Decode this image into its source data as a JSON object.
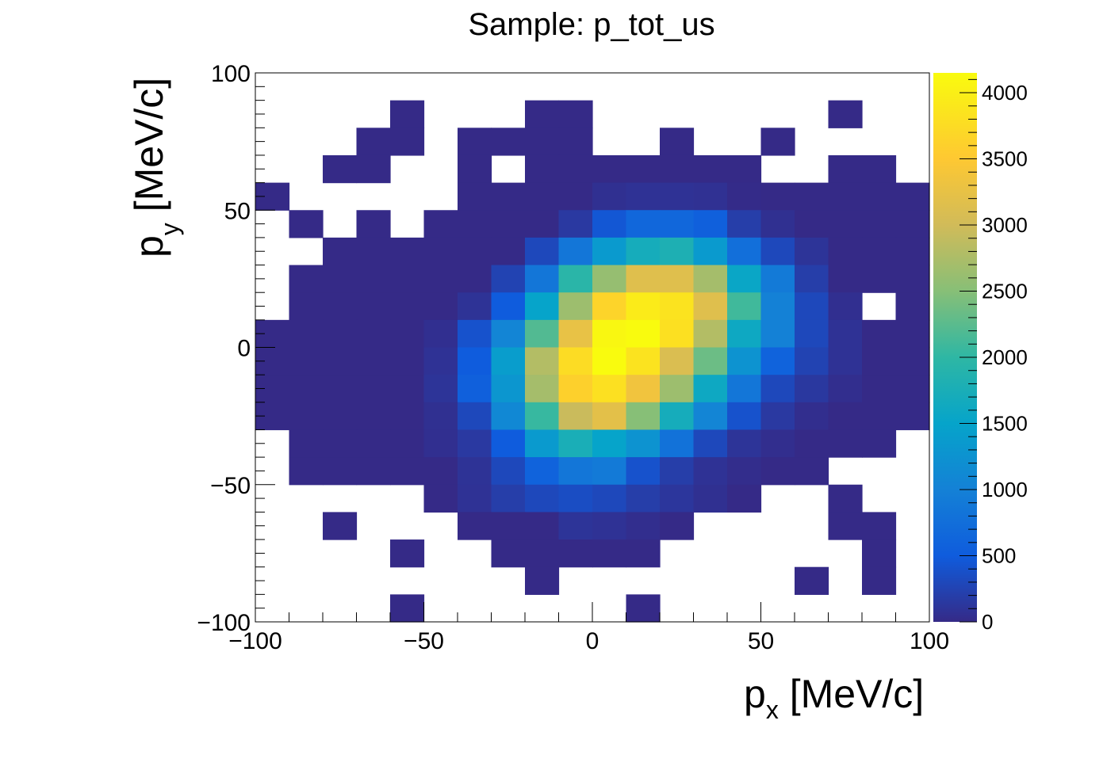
{
  "chart_data": {
    "type": "heatmap",
    "title": "Sample: p_tot_us",
    "xlabel": {
      "main": "p",
      "sub": "x",
      "unit": " [MeV/c]"
    },
    "ylabel": {
      "main": "p",
      "sub": "y",
      "unit": " [MeV/c]"
    },
    "xlim": [
      -100,
      100
    ],
    "ylim": [
      -100,
      100
    ],
    "zlim": [
      0,
      4150
    ],
    "x_ticks": [
      -100,
      -50,
      0,
      50,
      100
    ],
    "y_ticks": [
      -100,
      -50,
      0,
      50,
      100
    ],
    "x_tick_labels": [
      "−100",
      "−50",
      "0",
      "50",
      "100"
    ],
    "y_tick_labels": [
      "−100",
      "−50",
      "0",
      "50",
      "100"
    ],
    "colorbar_ticks": [
      0,
      500,
      1000,
      1500,
      2000,
      2500,
      3000,
      3500,
      4000
    ],
    "colorbar_tick_labels": [
      "0",
      "500",
      "1000",
      "1500",
      "2000",
      "2500",
      "3000",
      "3500",
      "4000"
    ],
    "bin_edges_x": [
      -100,
      -90,
      -80,
      -70,
      -60,
      -50,
      -40,
      -30,
      -20,
      -10,
      0,
      10,
      20,
      30,
      40,
      50,
      60,
      70,
      80,
      90,
      100
    ],
    "bin_edges_y": [
      -100,
      -90,
      -80,
      -70,
      -60,
      -50,
      -40,
      -30,
      -20,
      -10,
      0,
      10,
      20,
      30,
      40,
      50,
      60,
      70,
      80,
      90,
      100
    ],
    "values_rows_top_to_bottom": [
      [
        0,
        0,
        0,
        0,
        0,
        0,
        0,
        0,
        0,
        0,
        0,
        0,
        0,
        0,
        0,
        0,
        0,
        0,
        0,
        0
      ],
      [
        0,
        0,
        0,
        0,
        1,
        0,
        0,
        0,
        1,
        1,
        0,
        0,
        0,
        0,
        0,
        0,
        0,
        1,
        0,
        0
      ],
      [
        0,
        0,
        0,
        1,
        1,
        0,
        1,
        1,
        1,
        1,
        0,
        0,
        1,
        0,
        0,
        1,
        0,
        0,
        0,
        0
      ],
      [
        0,
        0,
        1,
        1,
        0,
        0,
        1,
        0,
        1,
        1,
        1,
        1,
        1,
        1,
        1,
        0,
        0,
        1,
        1,
        0
      ],
      [
        1,
        0,
        0,
        0,
        0,
        0,
        1,
        1,
        1,
        1,
        60,
        80,
        80,
        70,
        10,
        1,
        1,
        1,
        1,
        1
      ],
      [
        0,
        1,
        0,
        1,
        0,
        1,
        1,
        1,
        1,
        150,
        450,
        650,
        650,
        550,
        200,
        60,
        1,
        1,
        1,
        1
      ],
      [
        0,
        0,
        1,
        1,
        1,
        1,
        1,
        1,
        300,
        850,
        1350,
        1700,
        1800,
        1350,
        750,
        300,
        100,
        1,
        1,
        1
      ],
      [
        0,
        1,
        1,
        1,
        1,
        1,
        1,
        250,
        850,
        1950,
        2600,
        3150,
        3150,
        2700,
        1550,
        900,
        200,
        1,
        1,
        1
      ],
      [
        0,
        1,
        1,
        1,
        1,
        1,
        90,
        500,
        1500,
        2650,
        3650,
        3950,
        3850,
        3150,
        2100,
        1000,
        300,
        50,
        0,
        1
      ],
      [
        1,
        1,
        1,
        1,
        1,
        50,
        400,
        1050,
        2200,
        3250,
        4100,
        4150,
        3800,
        2800,
        1600,
        1000,
        300,
        80,
        1,
        1
      ],
      [
        1,
        1,
        1,
        1,
        1,
        80,
        500,
        1400,
        2800,
        3750,
        4150,
        3850,
        3100,
        2350,
        1250,
        600,
        250,
        80,
        1,
        1
      ],
      [
        1,
        1,
        1,
        1,
        1,
        100,
        550,
        1300,
        2700,
        3600,
        3800,
        3350,
        2650,
        1600,
        850,
        300,
        140,
        40,
        1,
        1
      ],
      [
        1,
        1,
        1,
        1,
        1,
        60,
        300,
        1100,
        2050,
        2950,
        3200,
        2500,
        1700,
        1050,
        400,
        150,
        40,
        1,
        1,
        1
      ],
      [
        0,
        1,
        1,
        1,
        1,
        50,
        150,
        500,
        1350,
        1750,
        1500,
        1250,
        800,
        300,
        100,
        40,
        1,
        1,
        1,
        0
      ],
      [
        0,
        1,
        1,
        1,
        1,
        1,
        90,
        300,
        600,
        850,
        900,
        400,
        200,
        80,
        30,
        1,
        1,
        0,
        0,
        0
      ],
      [
        0,
        0,
        0,
        0,
        0,
        1,
        80,
        200,
        300,
        350,
        300,
        200,
        120,
        60,
        1,
        0,
        0,
        1,
        0,
        0
      ],
      [
        0,
        0,
        1,
        0,
        0,
        0,
        1,
        1,
        1,
        100,
        80,
        40,
        1,
        0,
        0,
        0,
        0,
        1,
        1,
        0
      ],
      [
        0,
        0,
        0,
        0,
        1,
        0,
        0,
        1,
        1,
        1,
        1,
        1,
        0,
        0,
        0,
        0,
        0,
        0,
        1,
        0
      ],
      [
        0,
        0,
        0,
        0,
        0,
        0,
        0,
        0,
        1,
        0,
        0,
        0,
        0,
        0,
        0,
        0,
        1,
        0,
        1,
        0
      ],
      [
        0,
        0,
        0,
        0,
        1,
        0,
        0,
        0,
        0,
        0,
        0,
        1,
        0,
        0,
        0,
        0,
        0,
        0,
        0,
        0
      ]
    ],
    "colormap": [
      "#352a87",
      "#0f5cdd",
      "#1481d6",
      "#06a4ca",
      "#2eb7a4",
      "#87bf77",
      "#d1bb59",
      "#fec832",
      "#f9fb0e"
    ],
    "colormap_stops": [
      0,
      500,
      1000,
      1500,
      2000,
      2500,
      3000,
      3500,
      4150
    ]
  }
}
